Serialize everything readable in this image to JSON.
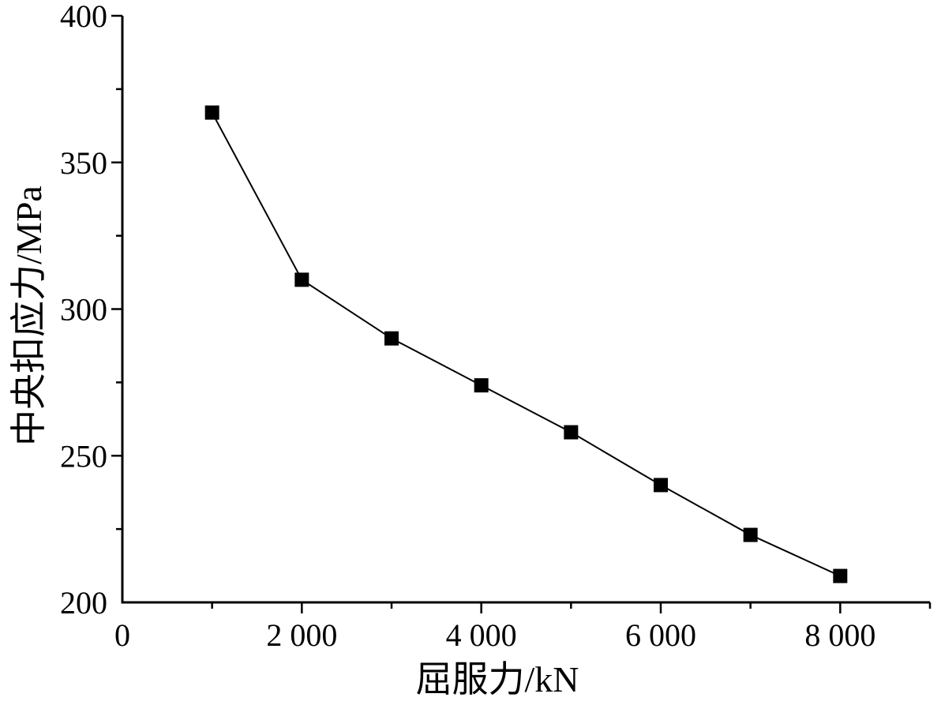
{
  "chart_data": {
    "type": "line",
    "xlabel": "屈服力/kN",
    "ylabel": "中央扣应力/MPa",
    "xlim": [
      0,
      9000
    ],
    "ylim": [
      200,
      400
    ],
    "x_ticks": [
      0,
      2000,
      4000,
      6000,
      8000
    ],
    "x_tick_labels": [
      "0",
      "2 000",
      "4 000",
      "6 000",
      "8 000"
    ],
    "y_ticks": [
      200,
      250,
      300,
      350,
      400
    ],
    "y_tick_labels": [
      "200",
      "250",
      "300",
      "350",
      "400"
    ],
    "grid": false,
    "series": [
      {
        "marker": "square",
        "color": "#000000",
        "x": [
          1000,
          2000,
          3000,
          4000,
          5000,
          6000,
          7000,
          8000
        ],
        "y": [
          367,
          310,
          290,
          274,
          258,
          240,
          223,
          209
        ]
      }
    ]
  }
}
